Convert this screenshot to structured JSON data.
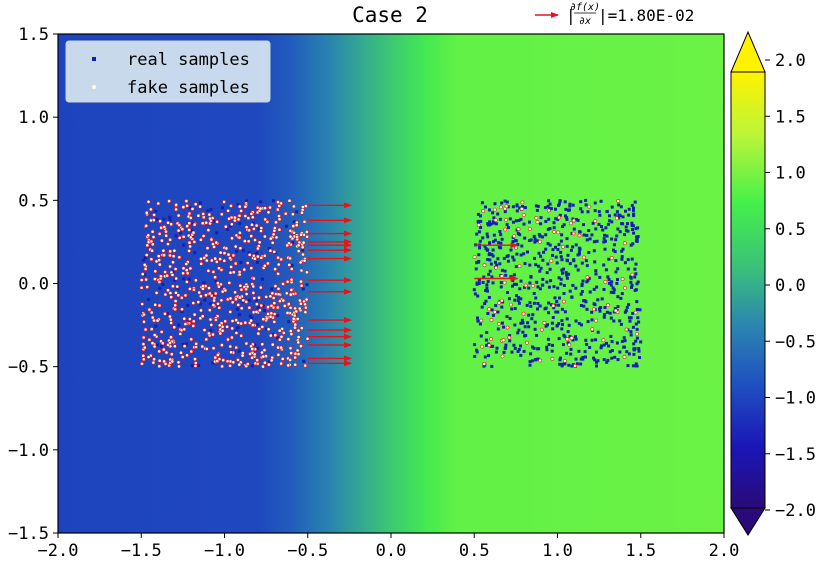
{
  "chart_data": {
    "type": "scatter",
    "title": "Case 2",
    "xlabel": "",
    "ylabel": "",
    "xlim": [
      -2.0,
      2.0
    ],
    "ylim": [
      -1.5,
      1.5
    ],
    "x_ticks": [
      "−2.0",
      "−1.5",
      "−1.0",
      "−0.5",
      "0.0",
      "0.5",
      "1.0",
      "1.5",
      "2.0"
    ],
    "y_ticks": [
      "−1.5",
      "−1.0",
      "−0.5",
      "0.0",
      "0.5",
      "1.0",
      "1.5"
    ],
    "grid": false,
    "legend_position": "top-left",
    "arrow_legend": {
      "label_prefix": "|",
      "numerator": "∂f(x)",
      "denominator": "∂x",
      "label_suffix": "|=1.80E-02",
      "color": "#e8121b"
    },
    "background_field": {
      "description_units": "f(x) value, depends on x only",
      "x": [
        -2.0,
        -0.8,
        -0.6,
        -0.4,
        -0.2,
        0.0,
        0.2,
        0.4,
        2.0
      ],
      "values": [
        -1.0,
        -0.95,
        -0.75,
        -0.4,
        -0.05,
        0.3,
        0.7,
        0.95,
        1.0
      ]
    },
    "colorbar": {
      "ticks": [
        "2.0",
        "1.5",
        "1.0",
        "0.5",
        "0.0",
        "−0.5",
        "−1.0",
        "−1.5",
        "−2.0"
      ],
      "range": [
        -2.0,
        2.0
      ],
      "extend": "both",
      "colormap": "custom blue-green-yellow"
    },
    "series": [
      {
        "name": "real samples",
        "color": "#1020b0",
        "regions": [
          {
            "x_range": [
              -1.5,
              -0.5
            ],
            "y_range": [
              -0.5,
              0.5
            ],
            "count": 120
          },
          {
            "x_range": [
              0.5,
              1.5
            ],
            "y_range": [
              -0.5,
              0.5
            ],
            "count": 700
          }
        ]
      },
      {
        "name": "fake samples",
        "color": "#fffbe6",
        "edge_color": "#e8121b",
        "regions": [
          {
            "x_range": [
              -1.5,
              -0.5
            ],
            "y_range": [
              -0.5,
              0.5
            ],
            "count": 700
          },
          {
            "x_range": [
              0.5,
              1.5
            ],
            "y_range": [
              -0.5,
              0.5
            ],
            "count": 90
          }
        ]
      }
    ],
    "gradient_arrows": {
      "color": "#e8121b",
      "dx": 0.26,
      "starts": [
        [
          -0.5,
          0.47
        ],
        [
          -0.5,
          0.38
        ],
        [
          -0.5,
          0.3
        ],
        [
          -0.5,
          0.25
        ],
        [
          -0.5,
          0.23
        ],
        [
          -0.5,
          0.2
        ],
        [
          -0.5,
          0.15
        ],
        [
          -0.5,
          0.02
        ],
        [
          -0.5,
          -0.05
        ],
        [
          -0.5,
          -0.22
        ],
        [
          -0.5,
          -0.28
        ],
        [
          -0.5,
          -0.32
        ],
        [
          -0.5,
          -0.37
        ],
        [
          -0.5,
          -0.45
        ],
        [
          -0.5,
          -0.48
        ],
        [
          0.5,
          0.23
        ],
        [
          0.5,
          0.03
        ]
      ]
    }
  }
}
